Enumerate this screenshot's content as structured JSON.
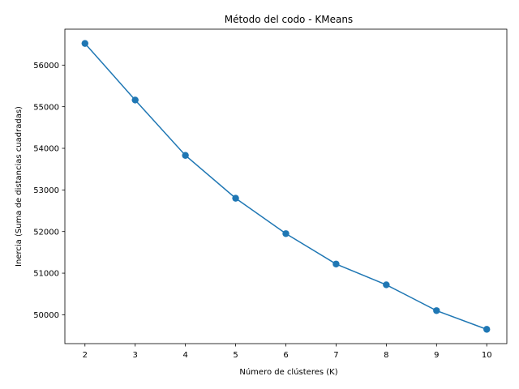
{
  "chart_data": {
    "type": "line",
    "title": "Método del codo - KMeans",
    "xlabel": "Número de clústeres (K)",
    "ylabel": "Inercia (Suma de distancias cuadradas)",
    "x": [
      2,
      3,
      4,
      5,
      6,
      7,
      8,
      9,
      10
    ],
    "series": [
      {
        "values": [
          56520,
          55160,
          53830,
          52800,
          51950,
          51220,
          50720,
          50100,
          49650
        ],
        "color": "#1f77b4",
        "marker": "circle"
      }
    ],
    "xticks": [
      2,
      3,
      4,
      5,
      6,
      7,
      8,
      9,
      10
    ],
    "yticks": [
      50000,
      51000,
      52000,
      53000,
      54000,
      55000,
      56000
    ],
    "xlim": [
      1.6,
      10.4
    ],
    "ylim": [
      49307,
      56863
    ],
    "grid": false,
    "legend": "none"
  }
}
